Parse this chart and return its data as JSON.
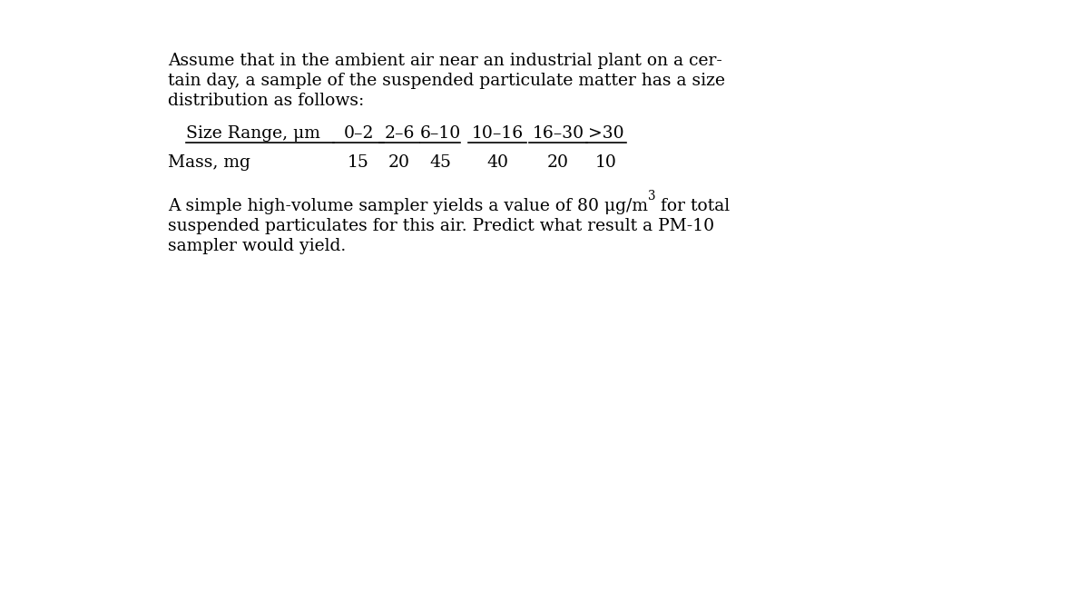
{
  "background_color": "#ffffff",
  "paragraph1_lines": [
    "Assume that in the ambient air near an industrial plant on a cer-",
    "tain day, a sample of the suspended particulate matter has a size",
    "distribution as follows:"
  ],
  "table_row1_label": "Size Range, μm",
  "table_row1_values": [
    "0–2",
    "2–6",
    "6–10",
    "10–16",
    "16–30",
    ">30"
  ],
  "table_row2_label": "Mass, mg",
  "table_row2_values": [
    "15",
    "20",
    "45",
    "40",
    "20",
    "10"
  ],
  "paragraph2_line1a": "A simple high-volume sampler yields a value of 80 μg/m",
  "paragraph2_line1b": "3",
  "paragraph2_line1c": " for total",
  "paragraph2_line2": "suspended particulates for this air. Predict what result a PM-10",
  "paragraph2_line3": "sampler would yield.",
  "font_size": 13.5,
  "font_family": "serif",
  "text_color": "#000000",
  "background_color2": "#ffffff"
}
